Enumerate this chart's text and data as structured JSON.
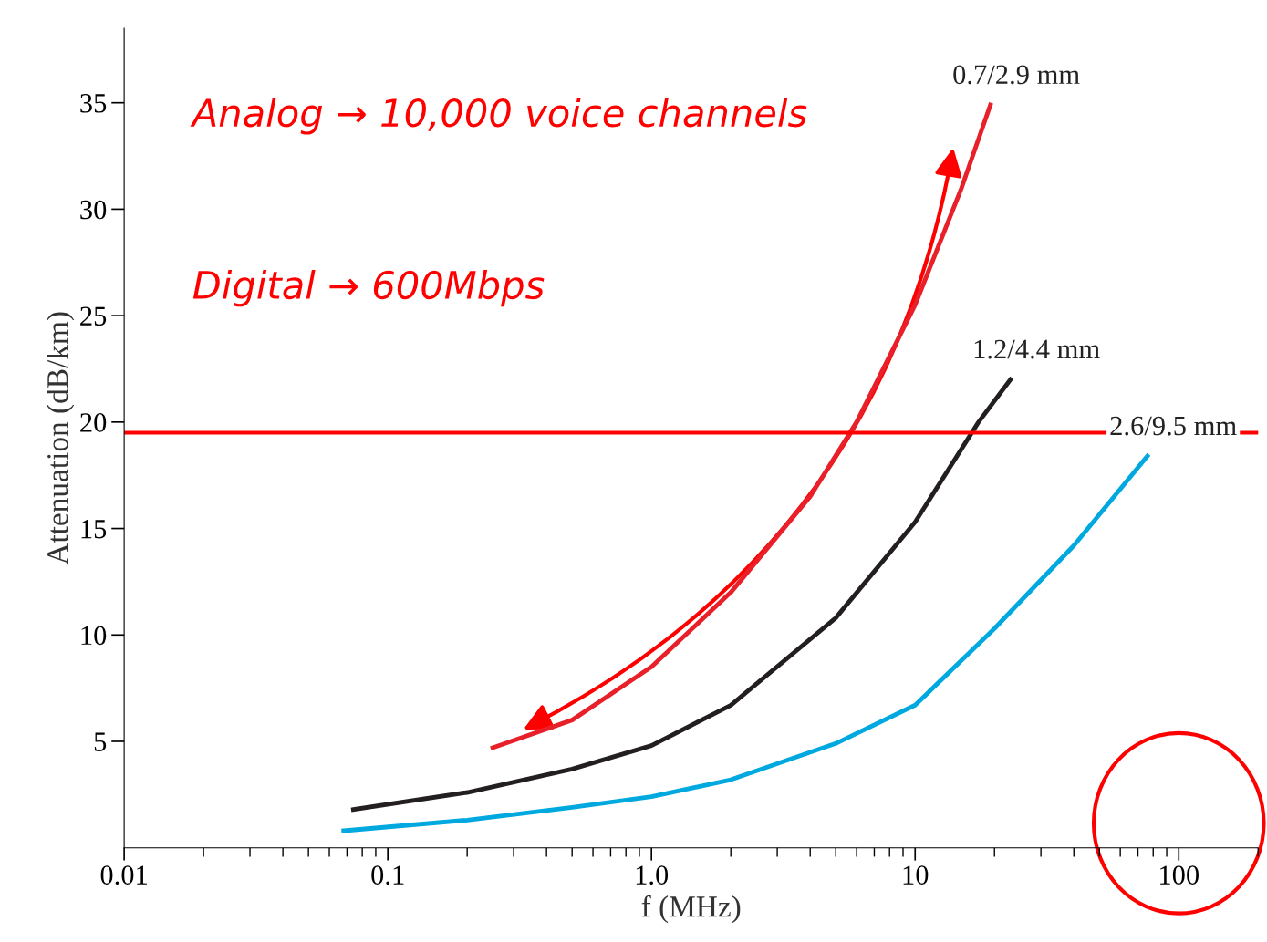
{
  "chart_data": {
    "type": "line",
    "xlabel": "f (MHz)",
    "ylabel": "Attenuation (dB/km)",
    "log": "x",
    "xlim": [
      0.01,
      200
    ],
    "xticks": [
      0.01,
      0.1,
      {
        "value": 1,
        "label": "1.0"
      },
      10,
      100
    ],
    "ylim": [
      0,
      38.5
    ],
    "yticks": [
      5,
      10,
      15,
      20,
      25,
      30,
      35
    ],
    "grid": false,
    "legend": false,
    "series": [
      {
        "name": "0.7/2.9 mm",
        "color": "#e8202a",
        "x": [
          0.25,
          0.5,
          1,
          2,
          4,
          6,
          10,
          15,
          19.3
        ],
        "values": [
          4.7,
          6.0,
          8.5,
          12,
          16.5,
          20,
          25.5,
          31,
          34.9
        ]
      },
      {
        "name": "1.2/4.4 mm",
        "color": "#231f20",
        "x": [
          0.074,
          0.2,
          0.5,
          1,
          2,
          5,
          10,
          17.4,
          23
        ],
        "values": [
          1.8,
          2.6,
          3.7,
          4.8,
          6.7,
          10.8,
          15.3,
          20,
          22
        ]
      },
      {
        "name": "2.6/9.5 mm",
        "color": "#00a8e0",
        "x": [
          0.068,
          0.2,
          0.5,
          1,
          2,
          5,
          10,
          20,
          40,
          76
        ],
        "values": [
          0.8,
          1.3,
          1.9,
          2.4,
          3.2,
          4.9,
          6.7,
          10.3,
          14.2,
          18.4
        ]
      }
    ],
    "ref_lines": [
      {
        "axis": "y",
        "value": 19.5,
        "color": "#ff0000"
      }
    ],
    "annotations": [
      "Analog → 10,000 voice channels",
      "Digital → 600Mbps"
    ]
  }
}
